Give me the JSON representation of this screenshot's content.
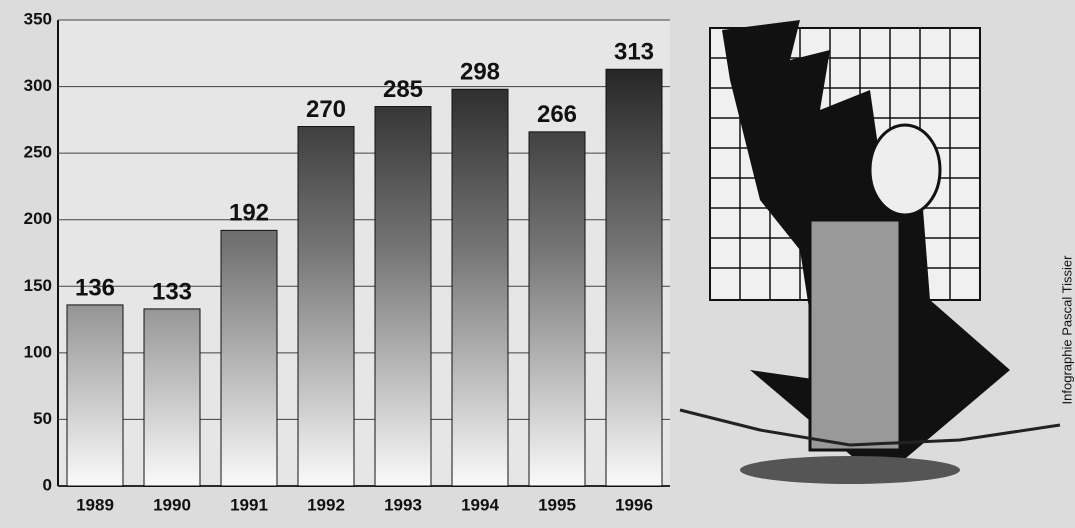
{
  "chart_data": {
    "type": "bar",
    "categories": [
      "1989",
      "1990",
      "1991",
      "1992",
      "1993",
      "1994",
      "1995",
      "1996"
    ],
    "values": [
      136,
      133,
      192,
      270,
      285,
      298,
      266,
      313
    ],
    "color": "#1a1a1a",
    "ylim": [
      0,
      350
    ],
    "yticks": [
      0,
      50,
      100,
      150,
      200,
      250,
      300,
      350
    ],
    "grid": true,
    "credit": "Infographie Pascal Tissier"
  }
}
